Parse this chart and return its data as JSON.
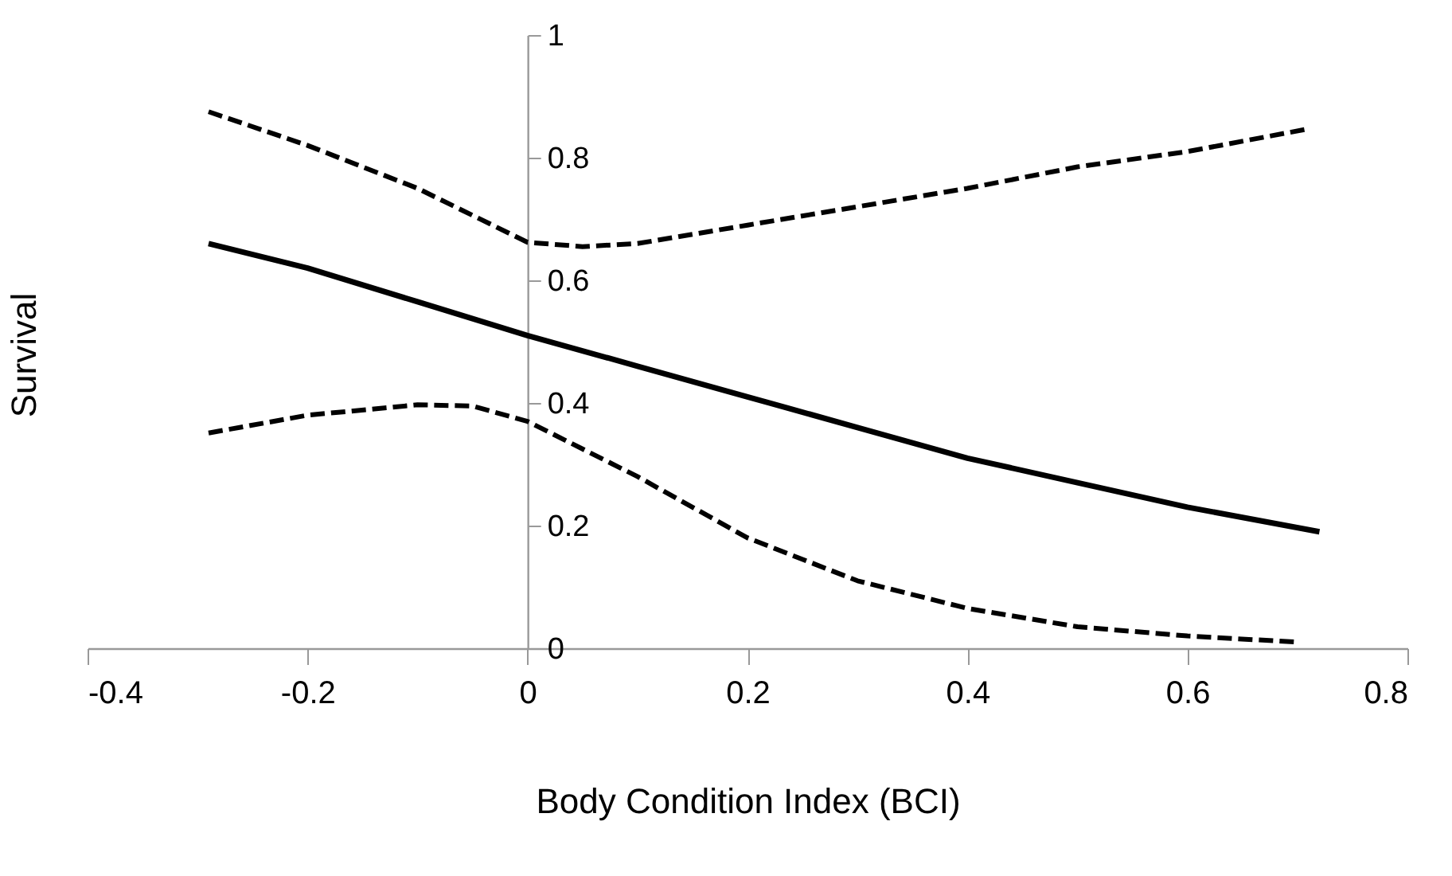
{
  "chart_data": {
    "type": "line",
    "xlabel": "Body Condition Index (BCI)",
    "ylabel": "Survival",
    "xlim": [
      -0.4,
      0.8
    ],
    "xticks": [
      -0.4,
      -0.2,
      0,
      0.2,
      0.4,
      0.6,
      0.8
    ],
    "ylim": [
      0,
      1
    ],
    "yticks": [
      0,
      0.2,
      0.4,
      0.6,
      0.8,
      1
    ],
    "grid": false,
    "marker": "none",
    "series": [
      {
        "color": "#000000",
        "line_style": "solid",
        "x": [
          -0.29,
          -0.2,
          -0.1,
          0,
          0.1,
          0.2,
          0.3,
          0.4,
          0.5,
          0.6,
          0.72
        ],
        "values": [
          0.66,
          0.62,
          0.565,
          0.51,
          0.46,
          0.41,
          0.36,
          0.31,
          0.27,
          0.23,
          0.19
        ]
      },
      {
        "color": "#000000",
        "line_style": "dashed",
        "x": [
          -0.29,
          -0.2,
          -0.1,
          0,
          0.05,
          0.1,
          0.2,
          0.3,
          0.4,
          0.5,
          0.6,
          0.71
        ],
        "values": [
          0.875,
          0.82,
          0.75,
          0.662,
          0.655,
          0.66,
          0.69,
          0.72,
          0.75,
          0.785,
          0.81,
          0.847
        ]
      },
      {
        "color": "#000000",
        "line_style": "dashed",
        "x": [
          -0.29,
          -0.2,
          -0.1,
          -0.05,
          0,
          0.1,
          0.2,
          0.3,
          0.4,
          0.5,
          0.6,
          0.7
        ],
        "values": [
          0.351,
          0.38,
          0.397,
          0.395,
          0.37,
          0.28,
          0.18,
          0.11,
          0.065,
          0.035,
          0.02,
          0.01
        ]
      }
    ]
  }
}
